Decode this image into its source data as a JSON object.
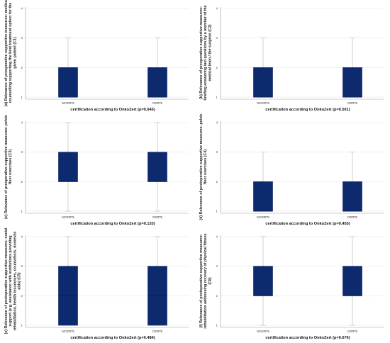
{
  "colors": {
    "box_fill": "#0d2a6e",
    "box_stroke": "#0a2160",
    "whisker": "#bdbdbd",
    "grid": "#e6e6e6",
    "axis": "#9a9a9a"
  },
  "chart_data": [
    {
      "type": "box",
      "ylabel": "(a) Relevance of preoperative supportive measures: medical counselling supporting the best treatment option for the given patient (C1)",
      "xlabel": "certification according to OnkoZert (p=0.645)",
      "categories": [
        "NCERTs",
        "CERTs"
      ],
      "yticks": [
        "1",
        "2",
        "3",
        "4"
      ],
      "ylim": [
        1,
        4
      ],
      "boxes": [
        {
          "min": 1,
          "q1": 1,
          "median": 1,
          "q3": 2,
          "max": 3
        },
        {
          "min": 1,
          "q1": 1,
          "median": 1,
          "q3": 2,
          "max": 3
        }
      ]
    },
    {
      "type": "box",
      "ylabel": "(b) Relevance of preoperative supportive measures: briefing answering last questions by a member of the medical team / the surgeon (C2)",
      "xlabel": "certification according to OnkoZert (p=0.501)",
      "categories": [
        "NCERTs",
        "CERTs"
      ],
      "yticks": [
        "1",
        "2",
        "3",
        "4"
      ],
      "ylim": [
        1,
        4
      ],
      "boxes": [
        {
          "min": 1,
          "q1": 1,
          "median": 1,
          "q3": 2,
          "max": 3
        },
        {
          "min": 1,
          "q1": 1,
          "median": 1,
          "q3": 2,
          "max": 3
        }
      ]
    },
    {
      "type": "box",
      "ylabel": "(c) Relevance of preoperative supportive measures: pelvic floor exercises (C3)",
      "xlabel": "certification according to OnkoZert (p=0.133)",
      "categories": [
        "NCERTs",
        "CERTs"
      ],
      "yticks": [
        "1",
        "2",
        "3",
        "4"
      ],
      "ylim": [
        1,
        4
      ],
      "boxes": [
        {
          "min": 1,
          "q1": 2,
          "median": 2,
          "q3": 3,
          "max": 4
        },
        {
          "min": 1,
          "q1": 2,
          "median": 2,
          "q3": 3,
          "max": 4
        }
      ]
    },
    {
      "type": "box",
      "ylabel": "(d) Relevance of postoperative supportive measures: pelvic floor exercises (C4)",
      "xlabel": "certification according to OnkoZert (p=0.455)",
      "categories": [
        "NCERTs",
        "CERTs"
      ],
      "yticks": [
        "1",
        "2",
        "3",
        "4"
      ],
      "ylim": [
        1,
        4
      ],
      "boxes": [
        {
          "min": 1,
          "q1": 1,
          "median": 1,
          "q3": 2,
          "max": 3
        },
        {
          "min": 1,
          "q1": 1,
          "median": 1,
          "q3": 2,
          "max": 3
        }
      ]
    },
    {
      "type": "box",
      "ylabel": "(e) Relevance of postoperative supportive measures: social support (e.g. assistance with institutions providing rehabilitation, health insurances, counsellors, domestic aids) (C5)",
      "xlabel": "certification according to OnkoZert (p=0.484)",
      "categories": [
        "NCERTs",
        "CERTs"
      ],
      "yticks": [
        "1",
        "2",
        "3",
        "4"
      ],
      "ylim": [
        1,
        4
      ],
      "boxes": [
        {
          "min": 1,
          "q1": 1,
          "median": 2,
          "q3": 3,
          "max": 4
        },
        {
          "min": 1,
          "q1": 1,
          "median": 2,
          "q3": 3,
          "max": 4
        }
      ]
    },
    {
      "type": "box",
      "ylabel": "(f) Relevance of postoperative supportive measures: rehabilitation addressing recovery of physical fitness (C6)",
      "xlabel": "certification according to OnkoZert (p=0.676)",
      "categories": [
        "NCERTs",
        "CERTs"
      ],
      "yticks": [
        "1",
        "2",
        "3",
        "4"
      ],
      "ylim": [
        1,
        4
      ],
      "boxes": [
        {
          "min": 1,
          "q1": 2,
          "median": 2,
          "q3": 3,
          "max": 4
        },
        {
          "min": 1,
          "q1": 2,
          "median": 2,
          "q3": 3,
          "max": 4
        }
      ]
    }
  ]
}
